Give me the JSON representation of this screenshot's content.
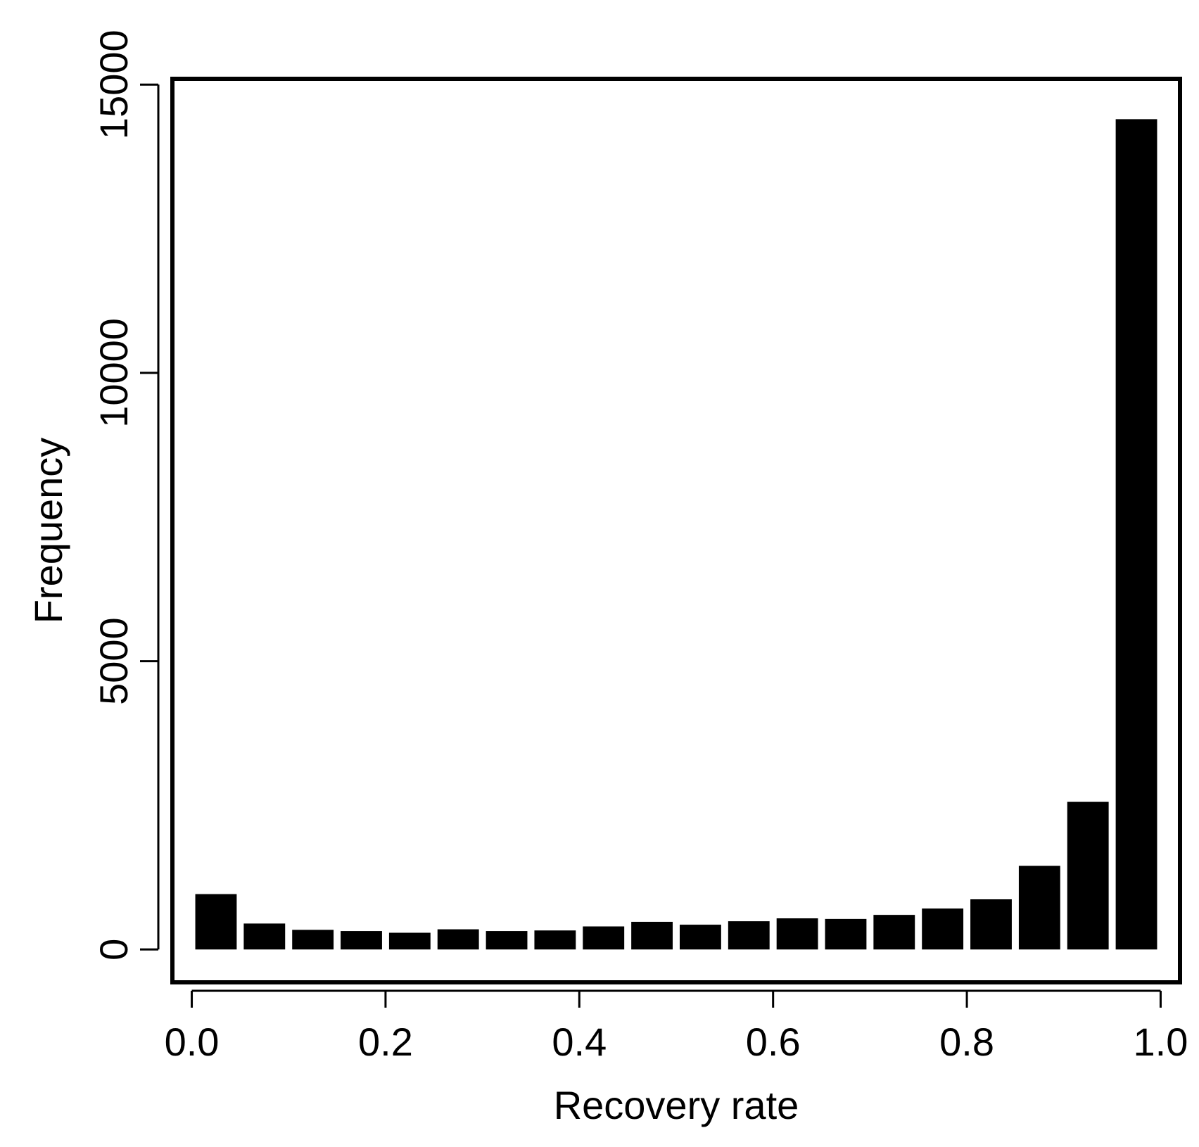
{
  "chart_data": {
    "type": "bar",
    "title": "",
    "xlabel": "Recovery rate",
    "ylabel": "Frequency",
    "bin_width": 0.05,
    "bins": [
      0.0,
      0.05,
      0.1,
      0.15,
      0.2,
      0.25,
      0.3,
      0.35,
      0.4,
      0.45,
      0.5,
      0.55,
      0.6,
      0.65,
      0.7,
      0.75,
      0.8,
      0.85,
      0.9,
      0.95
    ],
    "values": [
      960,
      450,
      340,
      320,
      290,
      350,
      320,
      330,
      400,
      480,
      430,
      490,
      540,
      530,
      600,
      710,
      870,
      1450,
      2560,
      14400
    ],
    "xlim": [
      -0.02,
      1.02
    ],
    "ylim": [
      -570,
      15100
    ],
    "x_ticks": [
      0.0,
      0.2,
      0.4,
      0.6,
      0.8,
      1.0
    ],
    "x_tick_labels": [
      "0.0",
      "0.2",
      "0.4",
      "0.6",
      "0.8",
      "1.0"
    ],
    "y_ticks": [
      0,
      5000,
      10000,
      15000
    ],
    "y_tick_labels": [
      "0",
      "5000",
      "10000",
      "15000"
    ],
    "grid": false,
    "colors": {
      "bar": "#000000",
      "axis": "#000000",
      "background": "#ffffff"
    }
  }
}
